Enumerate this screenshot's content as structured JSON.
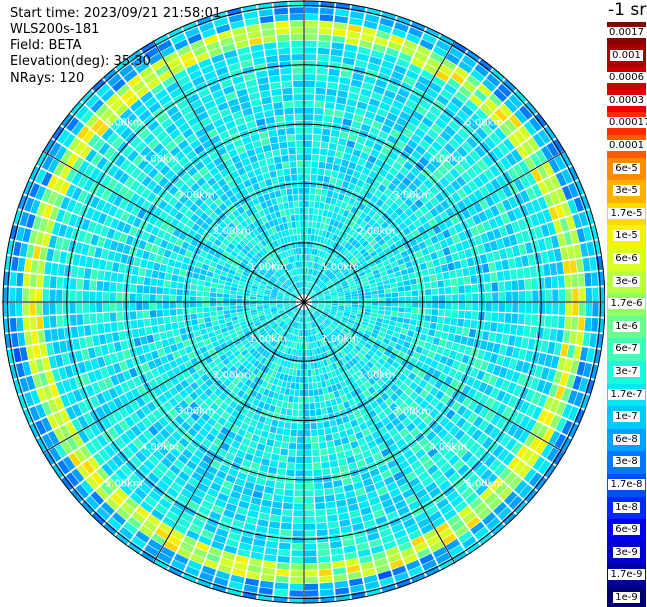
{
  "info": {
    "start_time": "Start time: 2023/09/21 21:58:01",
    "instrument": "WLS200s-181",
    "field": "Field: BETA",
    "elevation": "Elevation(deg): 35.30",
    "nrays": "NRays: 120"
  },
  "colorbar": {
    "unit": "-1 sr",
    "labels": [
      "0.0017",
      "0.001",
      "0.0006",
      "0.0003",
      "0.00017",
      "0.0001",
      "6e-5",
      "3e-5",
      "1.7e-5",
      "1e-5",
      "6e-6",
      "3e-6",
      "1.7e-6",
      "1e-6",
      "6e-7",
      "3e-7",
      "1.7e-7",
      "1e-7",
      "6e-8",
      "3e-8",
      "1.7e-8",
      "1e-8",
      "6e-9",
      "3e-9",
      "1.7e-9",
      "1e-9"
    ],
    "colors": [
      "#8b0000",
      "#a80000",
      "#c80000",
      "#e80000",
      "#ff2a00",
      "#ff5a00",
      "#ff8a00",
      "#ffb000",
      "#ffd800",
      "#f4f400",
      "#d8ff20",
      "#b8ff40",
      "#90ff68",
      "#68ff90",
      "#40ffb8",
      "#20f8dc",
      "#00e8f8",
      "#00c8ff",
      "#00a0ff",
      "#0078ff",
      "#0050ff",
      "#0028ff",
      "#0000f0",
      "#0000c8",
      "#00009c",
      "#000070"
    ]
  },
  "range_rings": {
    "labels": [
      "1.00km",
      "2.00km",
      "3.00km",
      "4.00km",
      "5.00km"
    ]
  }
}
